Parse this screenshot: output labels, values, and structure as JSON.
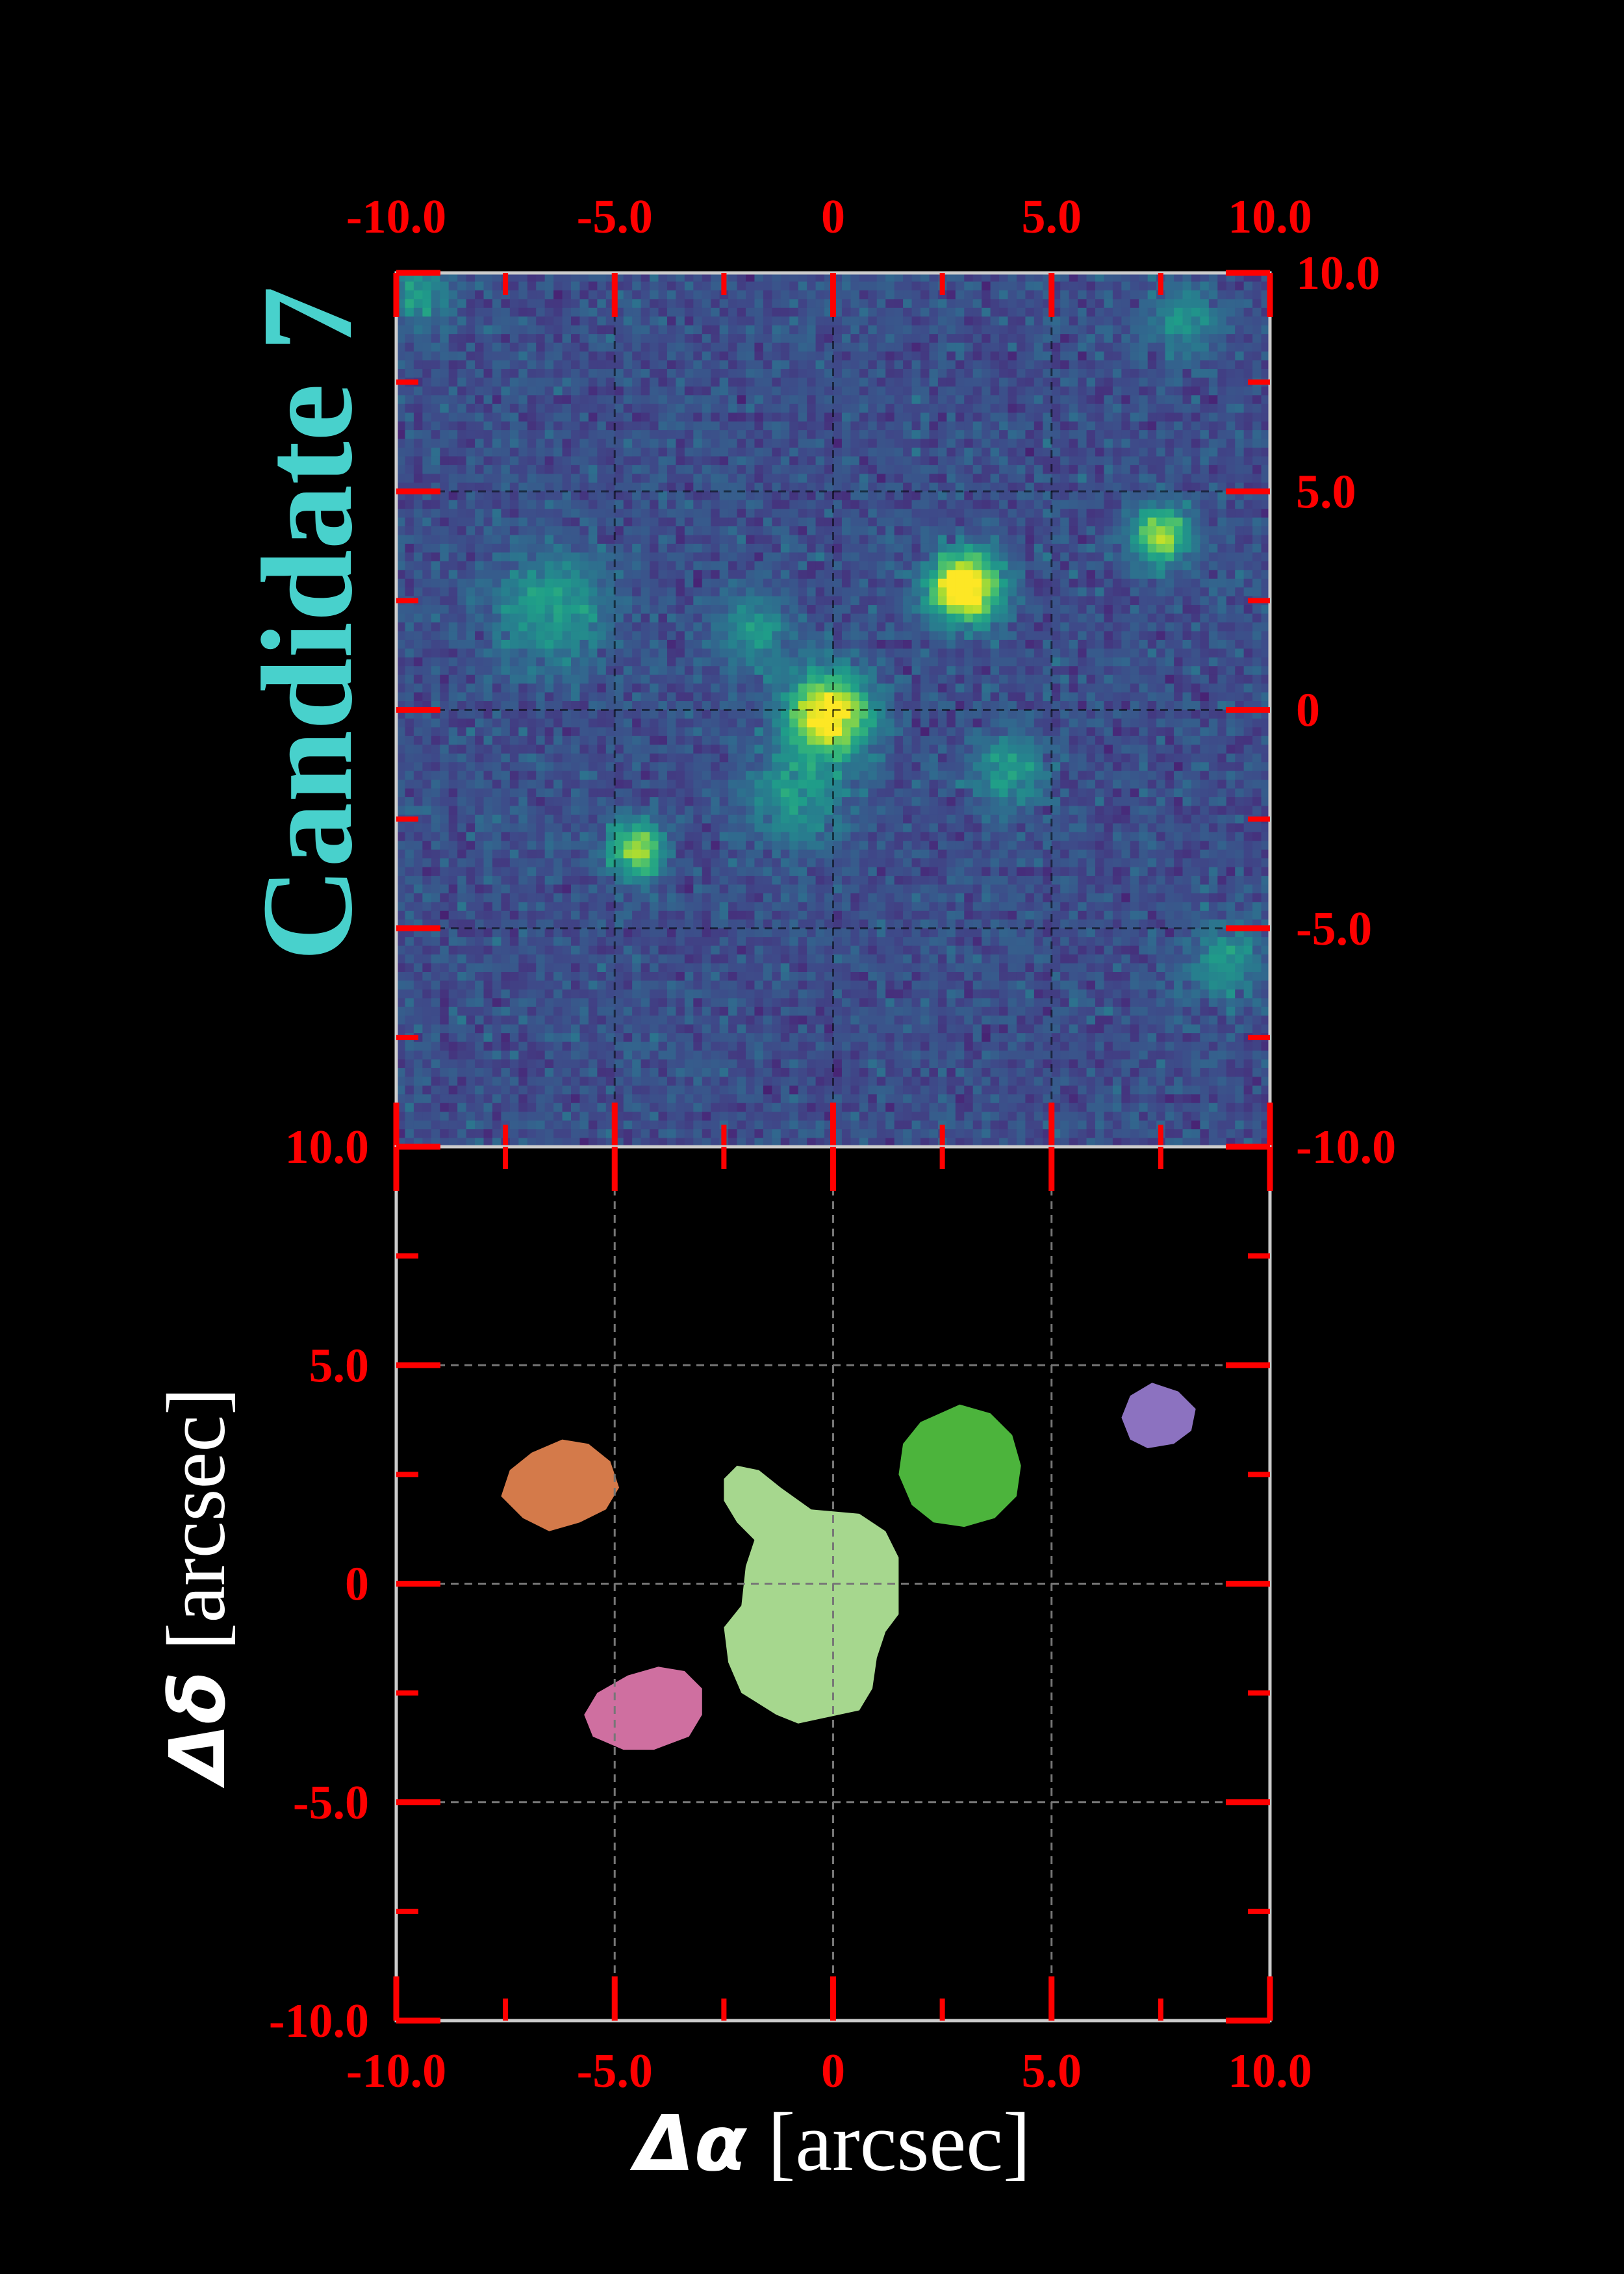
{
  "chart_data": [
    {
      "type": "heatmap",
      "panel": "top",
      "title": "Candidate 7",
      "title_color": "#48d1cc",
      "colormap": "viridis",
      "xlim": [
        -10.0,
        10.0
      ],
      "ylim": [
        -10.0,
        10.0
      ],
      "x_ticks": [
        "-10.0",
        "-5.0",
        "0",
        "5.0",
        "10.0"
      ],
      "y_ticks": [
        "-10.0",
        "-5.0",
        "0",
        "5.0",
        "10.0"
      ],
      "y_axis_side": "right",
      "grid": true,
      "sources": [
        {
          "x": 3.0,
          "y": 2.8,
          "peak": 1.0,
          "sigma": 0.55
        },
        {
          "x": -0.1,
          "y": -0.1,
          "peak": 0.85,
          "sigma": 0.65
        },
        {
          "x": 7.5,
          "y": 4.0,
          "peak": 0.65,
          "sigma": 0.45
        },
        {
          "x": -4.5,
          "y": -3.2,
          "peak": 0.65,
          "sigma": 0.45
        },
        {
          "x": -6.5,
          "y": 2.3,
          "peak": 0.35,
          "sigma": 0.9
        },
        {
          "x": -1.8,
          "y": 1.8,
          "peak": 0.3,
          "sigma": 0.6
        },
        {
          "x": -0.8,
          "y": -2.0,
          "peak": 0.3,
          "sigma": 0.8
        },
        {
          "x": 4.0,
          "y": -1.4,
          "peak": 0.3,
          "sigma": 0.6
        },
        {
          "x": 9.0,
          "y": -5.8,
          "peak": 0.3,
          "sigma": 0.6
        },
        {
          "x": 8.0,
          "y": 9.0,
          "peak": 0.25,
          "sigma": 0.6
        },
        {
          "x": -9.5,
          "y": 9.5,
          "peak": 0.3,
          "sigma": 0.5
        }
      ]
    },
    {
      "type": "segmentation-map",
      "panel": "bottom",
      "xlim": [
        -10.0,
        10.0
      ],
      "ylim": [
        -10.0,
        10.0
      ],
      "x_ticks": [
        "-10.0",
        "-5.0",
        "0",
        "5.0",
        "10.0"
      ],
      "y_ticks": [
        "-10.0",
        "-5.0",
        "0",
        "5.0",
        "10.0"
      ],
      "xlabel": {
        "symbol": "Δα",
        "unit": " [arcsec]"
      },
      "ylabel": {
        "symbol": "Δδ",
        "unit": " [arcsec]"
      },
      "grid": true,
      "segments": [
        {
          "color": "#a6d78e",
          "polygon": [
            [
              -2.2,
              2.7
            ],
            [
              -1.7,
              2.6
            ],
            [
              -1.2,
              2.2
            ],
            [
              -0.5,
              1.7
            ],
            [
              0.6,
              1.6
            ],
            [
              1.2,
              1.2
            ],
            [
              1.5,
              0.6
            ],
            [
              1.5,
              -0.7
            ],
            [
              1.2,
              -1.1
            ],
            [
              1.0,
              -1.7
            ],
            [
              0.9,
              -2.4
            ],
            [
              0.6,
              -2.9
            ],
            [
              -0.8,
              -3.2
            ],
            [
              -1.3,
              -3.0
            ],
            [
              -2.1,
              -2.5
            ],
            [
              -2.4,
              -1.8
            ],
            [
              -2.5,
              -1.0
            ],
            [
              -2.1,
              -0.5
            ],
            [
              -2.0,
              0.4
            ],
            [
              -1.8,
              1.0
            ],
            [
              -2.2,
              1.4
            ],
            [
              -2.5,
              1.9
            ],
            [
              -2.5,
              2.4
            ]
          ]
        },
        {
          "color": "#4cb43c",
          "polygon": [
            [
              2.9,
              4.1
            ],
            [
              3.6,
              3.9
            ],
            [
              4.1,
              3.4
            ],
            [
              4.3,
              2.7
            ],
            [
              4.2,
              2.0
            ],
            [
              3.7,
              1.5
            ],
            [
              3.0,
              1.3
            ],
            [
              2.3,
              1.4
            ],
            [
              1.8,
              1.8
            ],
            [
              1.5,
              2.5
            ],
            [
              1.6,
              3.2
            ],
            [
              2.0,
              3.7
            ]
          ]
        },
        {
          "color": "#d47a4a",
          "polygon": [
            [
              -6.2,
              3.3
            ],
            [
              -5.6,
              3.2
            ],
            [
              -5.1,
              2.8
            ],
            [
              -4.9,
              2.2
            ],
            [
              -5.2,
              1.7
            ],
            [
              -5.8,
              1.4
            ],
            [
              -6.5,
              1.2
            ],
            [
              -7.1,
              1.5
            ],
            [
              -7.6,
              2.0
            ],
            [
              -7.4,
              2.6
            ],
            [
              -6.9,
              3.0
            ]
          ]
        },
        {
          "color": "#8c72c0",
          "polygon": [
            [
              7.3,
              4.6
            ],
            [
              7.9,
              4.4
            ],
            [
              8.3,
              4.0
            ],
            [
              8.2,
              3.5
            ],
            [
              7.8,
              3.2
            ],
            [
              7.2,
              3.1
            ],
            [
              6.8,
              3.3
            ],
            [
              6.6,
              3.8
            ],
            [
              6.8,
              4.3
            ]
          ]
        },
        {
          "color": "#cf6fa0",
          "polygon": [
            [
              -4.0,
              -1.9
            ],
            [
              -3.4,
              -2.0
            ],
            [
              -3.0,
              -2.4
            ],
            [
              -3.0,
              -3.0
            ],
            [
              -3.3,
              -3.5
            ],
            [
              -4.1,
              -3.8
            ],
            [
              -4.8,
              -3.8
            ],
            [
              -5.5,
              -3.5
            ],
            [
              -5.7,
              -3.0
            ],
            [
              -5.4,
              -2.5
            ],
            [
              -4.7,
              -2.1
            ]
          ]
        }
      ]
    }
  ]
}
